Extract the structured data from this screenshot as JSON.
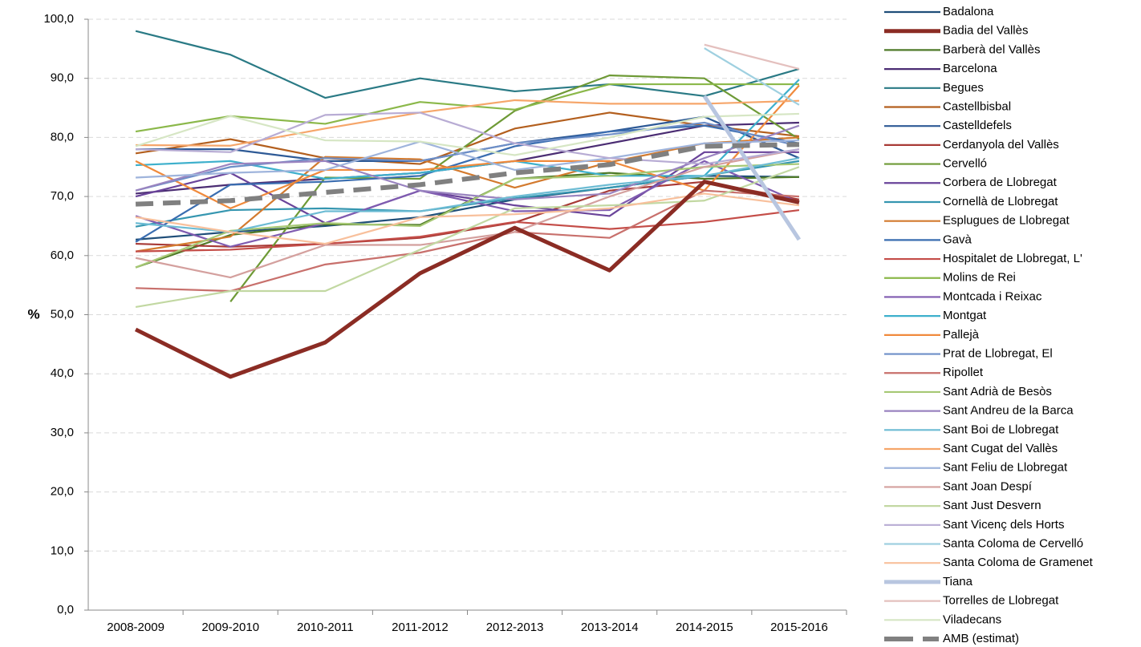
{
  "chart_data": {
    "type": "line",
    "y_label": "%",
    "categories": [
      "2008-2009",
      "2009-2010",
      "2010-2011",
      "2011-2012",
      "2012-2013",
      "2013-2014",
      "2014-2015",
      "2015-2016"
    ],
    "ylim": [
      0,
      100
    ],
    "yticks": [
      {
        "value": 0,
        "label": "0,0"
      },
      {
        "value": 10,
        "label": "10,0"
      },
      {
        "value": 20,
        "label": "20,0"
      },
      {
        "value": 30,
        "label": "30,0"
      },
      {
        "value": 40,
        "label": "40,0"
      },
      {
        "value": 50,
        "label": "50,0"
      },
      {
        "value": 60,
        "label": "60,0"
      },
      {
        "value": 70,
        "label": "70,0"
      },
      {
        "value": 80,
        "label": "80,0"
      },
      {
        "value": 90,
        "label": "90,0"
      },
      {
        "value": 100,
        "label": "100,0"
      }
    ],
    "grid": true,
    "legend": "right",
    "series": [
      {
        "name": "Badalona",
        "color": "#1f4e79",
        "values": [
          62.7,
          64,
          65,
          66.5,
          69.5,
          71.5,
          73.5,
          73.3
        ]
      },
      {
        "name": "Badia del Vallès",
        "color": "#8b2c24",
        "width": 5,
        "values": [
          47.5,
          39.5,
          45.3,
          57,
          64.7,
          57.5,
          72.5,
          69
        ]
      },
      {
        "name": "Barberà del Vallès",
        "color": "#4f7a28",
        "values": [
          58,
          63.5,
          65.3,
          65.2,
          73,
          74,
          73,
          73.3
        ]
      },
      {
        "name": "Barcelona",
        "color": "#4b2d73",
        "values": [
          70.5,
          72,
          73,
          74,
          76,
          79,
          82,
          82.5
        ]
      },
      {
        "name": "Begues",
        "color": "#2a7a85",
        "values": [
          98,
          94,
          86.7,
          90,
          87.8,
          89,
          87,
          91.6
        ]
      },
      {
        "name": "Castellbisbal",
        "color": "#b35f1e",
        "values": [
          77.3,
          79.7,
          76.5,
          75.5,
          81.5,
          84.2,
          82,
          80.2
        ]
      },
      {
        "name": "Castelldefels",
        "color": "#2e5a96",
        "values": [
          78,
          78,
          76,
          76,
          79,
          81,
          83.5,
          76.5
        ]
      },
      {
        "name": "Cerdanyola del Vallès",
        "color": "#a83a36",
        "values": [
          62,
          61.5,
          62,
          63,
          65.6,
          71,
          72.5,
          69.5
        ]
      },
      {
        "name": "Cervelló",
        "color": "#6e9a36",
        "values": [
          null,
          52.2,
          73.2,
          73,
          84.5,
          90.5,
          90,
          79.7
        ]
      },
      {
        "name": "Corbera de Llobregat",
        "color": "#6a449a",
        "values": [
          70,
          74,
          65.5,
          71,
          68.5,
          66.7,
          77.5,
          77.5
        ]
      },
      {
        "name": "Cornellà de Llobregat",
        "color": "#3596b0",
        "values": [
          64.9,
          67.7,
          68,
          67.5,
          69.7,
          71.5,
          73.5,
          76
        ]
      },
      {
        "name": "Esplugues de Llobregat",
        "color": "#d37a2e",
        "values": [
          60.7,
          63.2,
          76.7,
          76.3,
          71.5,
          75.8,
          79,
          80
        ]
      },
      {
        "name": "Gavà",
        "color": "#3a6db0",
        "values": [
          62.3,
          72,
          72.5,
          73.5,
          78.5,
          81,
          82,
          79
        ]
      },
      {
        "name": "Hospitalet de Llobregat, L'",
        "color": "#c44d48",
        "values": [
          60.7,
          61,
          62,
          63.2,
          65.7,
          64.5,
          65.7,
          67.7
        ]
      },
      {
        "name": "Molins de Rei",
        "color": "#8bb84a",
        "values": [
          81,
          83.6,
          82.3,
          86,
          84.7,
          89,
          89,
          89
        ]
      },
      {
        "name": "Montcada i Reixac",
        "color": "#7f5bb0",
        "values": [
          66.7,
          61.5,
          65.5,
          71,
          67.5,
          67.7,
          76,
          69
        ]
      },
      {
        "name": "Montgat",
        "color": "#3eb0cc",
        "values": [
          75.3,
          76,
          73,
          74,
          76,
          73.5,
          73.5,
          89.8
        ]
      },
      {
        "name": "Pallejà",
        "color": "#f08a3c",
        "values": [
          76,
          68,
          74.5,
          74.5,
          76,
          76,
          71,
          88.8
        ]
      },
      {
        "name": "Prat de Llobregat, El",
        "color": "#6e8fc8",
        "values": [
          71,
          75,
          76.5,
          76,
          79,
          80.5,
          82.5,
          78.5
        ]
      },
      {
        "name": "Ripollet",
        "color": "#c8706c",
        "values": [
          54.5,
          54,
          58.5,
          60.5,
          64,
          63,
          71,
          70
        ]
      },
      {
        "name": "Sant Adrià de Besòs",
        "color": "#a6c874",
        "values": [
          58,
          64.2,
          65.5,
          65,
          73,
          73.5,
          75,
          75.5
        ]
      },
      {
        "name": "Sant Andreu de la Barca",
        "color": "#9a84c0",
        "values": [
          71,
          75.5,
          76,
          71,
          69.5,
          70.5,
          76.5,
          82
        ]
      },
      {
        "name": "Sant Boi de Llobregat",
        "color": "#6dbcd4",
        "values": [
          65.5,
          64,
          67.5,
          67.5,
          70,
          72,
          73.5,
          76.5
        ]
      },
      {
        "name": "Sant Cugat del Vallès",
        "color": "#f6a66a",
        "values": [
          78.7,
          78.6,
          81.5,
          84.2,
          86.3,
          85.7,
          85.7,
          86.2
        ]
      },
      {
        "name": "Sant Feliu de Llobregat",
        "color": "#9fb4dc",
        "values": [
          73.2,
          74,
          74.5,
          79.3,
          74.5,
          76.5,
          79,
          79.5
        ]
      },
      {
        "name": "Sant Joan Despí",
        "color": "#d4a09e",
        "values": [
          59.6,
          56.3,
          61.8,
          61.8,
          64,
          70,
          75,
          78
        ]
      },
      {
        "name": "Sant Just Desvern",
        "color": "#c2d8a2",
        "values": [
          51.3,
          54,
          54,
          61,
          68,
          68.5,
          69.3,
          75
        ]
      },
      {
        "name": "Sant Vicenç dels Horts",
        "color": "#b8acd4",
        "values": [
          78,
          77.5,
          83.8,
          84.2,
          79,
          76.5,
          75.5,
          78
        ]
      },
      {
        "name": "Santa Coloma de Cervelló",
        "color": "#9fd0e0",
        "values": [
          null,
          null,
          null,
          null,
          null,
          null,
          95.1,
          85.5
        ]
      },
      {
        "name": "Santa Coloma de Gramenet",
        "color": "#f8c09c",
        "values": [
          66.5,
          64,
          62,
          66.5,
          67,
          68,
          70.5,
          68.5
        ]
      },
      {
        "name": "Tiana",
        "color": "#b8c6e0",
        "width": 5,
        "values": [
          null,
          null,
          null,
          null,
          null,
          null,
          87,
          62.7
        ]
      },
      {
        "name": "Torrelles de Llobregat",
        "color": "#e4c0be",
        "values": [
          null,
          null,
          null,
          null,
          null,
          null,
          95.7,
          91.6
        ]
      },
      {
        "name": "Viladecans",
        "color": "#d6e6c4",
        "values": [
          78.5,
          83.6,
          79.5,
          79.3,
          77,
          80,
          83.5,
          84
        ]
      },
      {
        "name": "AMB (estimat)",
        "color": "#808080",
        "width": 6,
        "dash": true,
        "values": [
          68.7,
          69.3,
          70.7,
          72,
          74,
          75.4,
          78.5,
          78.8
        ]
      }
    ]
  }
}
